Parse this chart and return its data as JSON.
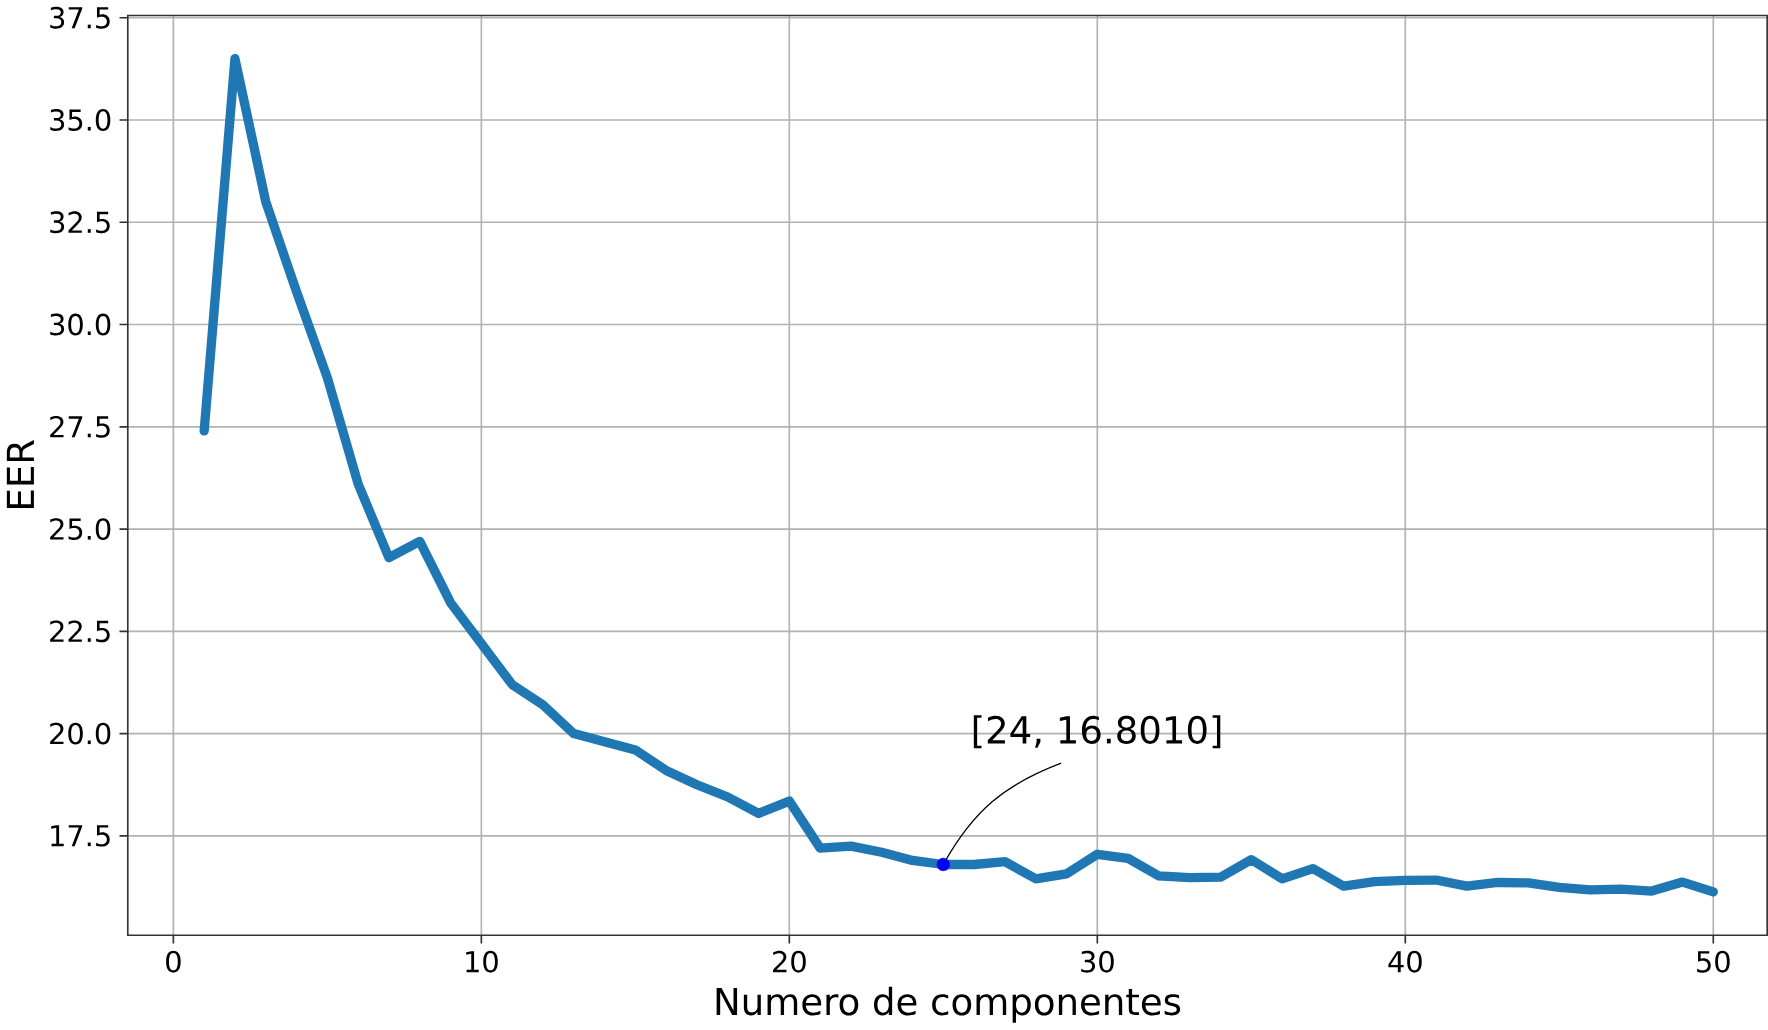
{
  "chart_data": {
    "type": "line",
    "xlabel": "Numero de componentes",
    "ylabel": "EER",
    "x": [
      1,
      2,
      3,
      4,
      5,
      6,
      7,
      8,
      9,
      10,
      11,
      12,
      13,
      14,
      15,
      16,
      17,
      18,
      19,
      20,
      21,
      22,
      23,
      24,
      25,
      26,
      27,
      28,
      29,
      30,
      31,
      32,
      33,
      34,
      35,
      36,
      37,
      38,
      39,
      40,
      41,
      42,
      43,
      44,
      45,
      46,
      47,
      48,
      49,
      50
    ],
    "series": [
      {
        "color": "#1f77b4",
        "values": [
          27.4,
          36.5,
          33.0,
          30.8,
          28.7,
          26.1,
          24.3,
          24.7,
          23.2,
          22.2,
          21.2,
          20.7,
          20.0,
          19.8,
          19.6,
          19.1,
          18.75,
          18.45,
          18.05,
          18.35,
          17.2,
          17.25,
          17.1,
          16.9,
          16.8,
          16.8,
          16.87,
          16.45,
          16.57,
          17.05,
          16.95,
          16.52,
          16.48,
          16.49,
          16.92,
          16.45,
          16.7,
          16.27,
          16.38,
          16.41,
          16.42,
          16.27,
          16.36,
          16.35,
          16.24,
          16.18,
          16.2,
          16.15,
          16.37,
          16.13
        ]
      },
      {
        "type": "scatter",
        "color": "#0000ff",
        "x": [
          25
        ],
        "values": [
          16.801
        ],
        "marker": "circle"
      }
    ],
    "annotations": [
      {
        "text": "[24, 16.8010]",
        "x": 25,
        "y": 16.801
      }
    ],
    "xlim": [
      -1.48,
      51.75
    ],
    "ylim": [
      15.07,
      37.56
    ],
    "xticks": [
      0,
      10,
      20,
      30,
      40,
      50
    ],
    "yticks": [
      {
        "value": 17.5,
        "label": "17.5"
      },
      {
        "value": 20,
        "label": "20.0"
      },
      {
        "value": 22.5,
        "label": "22.5"
      },
      {
        "value": 25,
        "label": "25.0"
      },
      {
        "value": 27.5,
        "label": "27.5"
      },
      {
        "value": 30,
        "label": "30.0"
      },
      {
        "value": 32.5,
        "label": "32.5"
      },
      {
        "value": 35,
        "label": "35.0"
      },
      {
        "value": 37.5,
        "label": "37.5"
      }
    ],
    "grid": true,
    "line_style": "solid"
  }
}
